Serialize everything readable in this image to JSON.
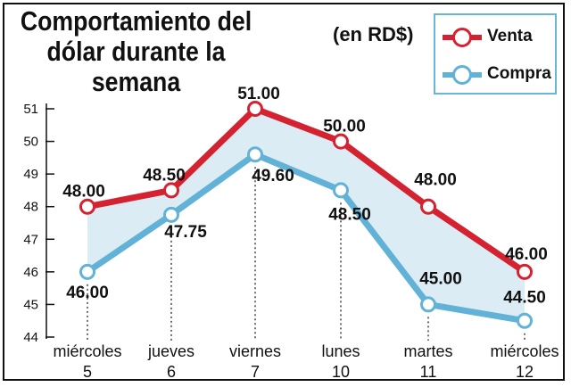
{
  "chart_data": {
    "type": "line",
    "title_lines": [
      "Comportamiento del",
      "dólar durante la",
      "semana"
    ],
    "unit_label": "(en RD$)",
    "categories": [
      {
        "day": "miércoles",
        "date": "5"
      },
      {
        "day": "jueves",
        "date": "6"
      },
      {
        "day": "viernes",
        "date": "7"
      },
      {
        "day": "lunes",
        "date": "10"
      },
      {
        "day": "martes",
        "date": "11"
      },
      {
        "day": "miércoles",
        "date": "12"
      }
    ],
    "series": [
      {
        "name": "Venta",
        "color": "#d42230",
        "values": [
          48.0,
          48.5,
          51.0,
          50.0,
          48.0,
          46.0
        ],
        "labels": [
          "48.00",
          "48.50",
          "51.00",
          "50.00",
          "48.00",
          "46.00"
        ]
      },
      {
        "name": "Compra",
        "color": "#62b2d8",
        "values": [
          46.0,
          47.75,
          49.6,
          48.5,
          45.0,
          44.5
        ],
        "labels": [
          "46.00",
          "47.75",
          "49.60",
          "48.50",
          "45.00",
          "44.50"
        ]
      }
    ],
    "yticks": [
      "44",
      "45",
      "46",
      "47",
      "48",
      "49",
      "50",
      "51"
    ],
    "ylim": [
      44,
      51
    ],
    "fill_between_color": "#dcecf4",
    "legend_position": "top-right"
  }
}
